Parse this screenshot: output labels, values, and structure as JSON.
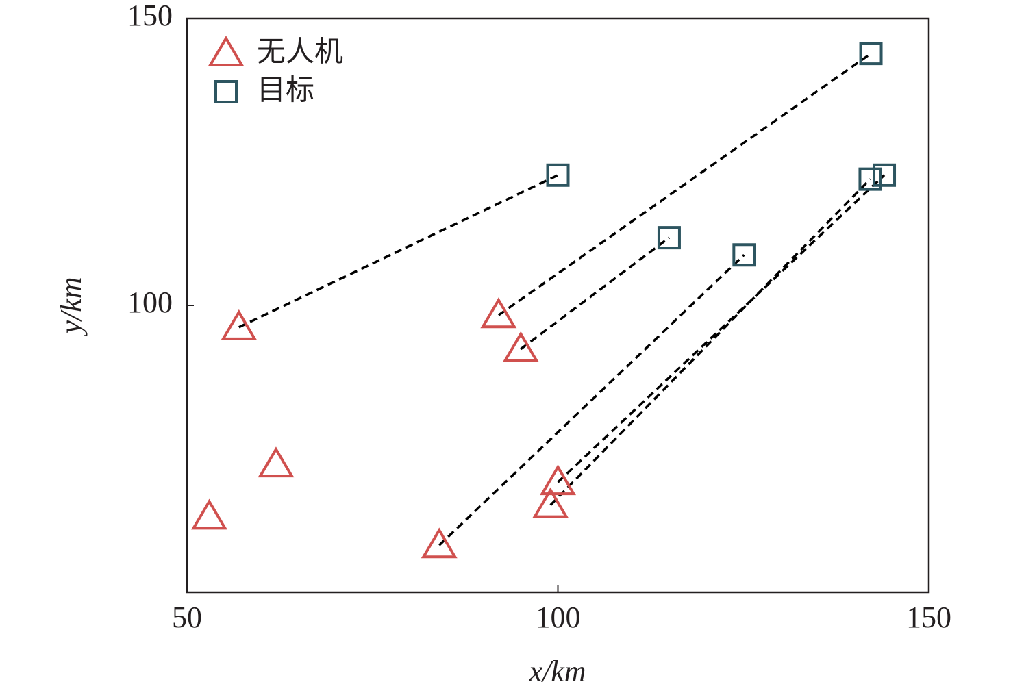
{
  "chart_data": {
    "type": "scatter",
    "x_label": "x/km",
    "y_label": "y/km",
    "xlim": [
      50,
      150
    ],
    "xticks": [
      50,
      100,
      150
    ],
    "ylim": [
      50,
      150
    ],
    "yticks": [
      100,
      150
    ],
    "legend": "upper left",
    "series": [
      {
        "name": "无人机",
        "color": "#d0504e",
        "marker": "triangle",
        "x": [
          57,
          92,
          95,
          62,
          53,
          100,
          99,
          84
        ],
        "values": [
          96.2,
          98.3,
          92.4,
          72.3,
          63.2,
          69.2,
          65.2,
          58.2
        ],
        "target": [
          1,
          0,
          2,
          null,
          null,
          5,
          4,
          3
        ]
      },
      {
        "name": "目标",
        "color": "#2d5560",
        "marker": "square",
        "x": [
          142.2,
          100,
          115,
          125.1,
          142.1,
          144
        ],
        "values": [
          143.9,
          122.7,
          111.8,
          108.8,
          122.0,
          122.7
        ]
      }
    ]
  }
}
